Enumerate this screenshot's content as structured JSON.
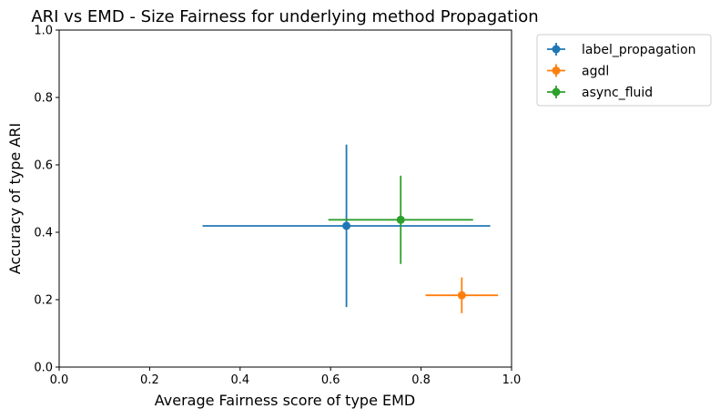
{
  "chart_data": {
    "type": "scatter",
    "title": "ARI vs EMD - Size Fairness for underlying method Propagation",
    "xlabel": "Average Fairness score of type EMD",
    "ylabel": "Accuracy of type ARI",
    "xlim": [
      0.0,
      1.0
    ],
    "ylim": [
      0.0,
      1.0
    ],
    "x_ticks": [
      "0.0",
      "0.2",
      "0.4",
      "0.6",
      "0.8",
      "1.0"
    ],
    "y_ticks": [
      "0.0",
      "0.2",
      "0.4",
      "0.6",
      "0.8",
      "1.0"
    ],
    "grid": false,
    "legend_position": "outside upper right",
    "series": [
      {
        "name": "label_propagation",
        "color": "#1f77b4",
        "x": 0.635,
        "y": 0.419,
        "x_err": 0.318,
        "y_err": 0.241
      },
      {
        "name": "agdl",
        "color": "#ff7f0e",
        "x": 0.89,
        "y": 0.213,
        "x_err": 0.08,
        "y_err": 0.053
      },
      {
        "name": "async_fluid",
        "color": "#2ca02c",
        "x": 0.755,
        "y": 0.437,
        "x_err": 0.16,
        "y_err": 0.131
      }
    ]
  }
}
